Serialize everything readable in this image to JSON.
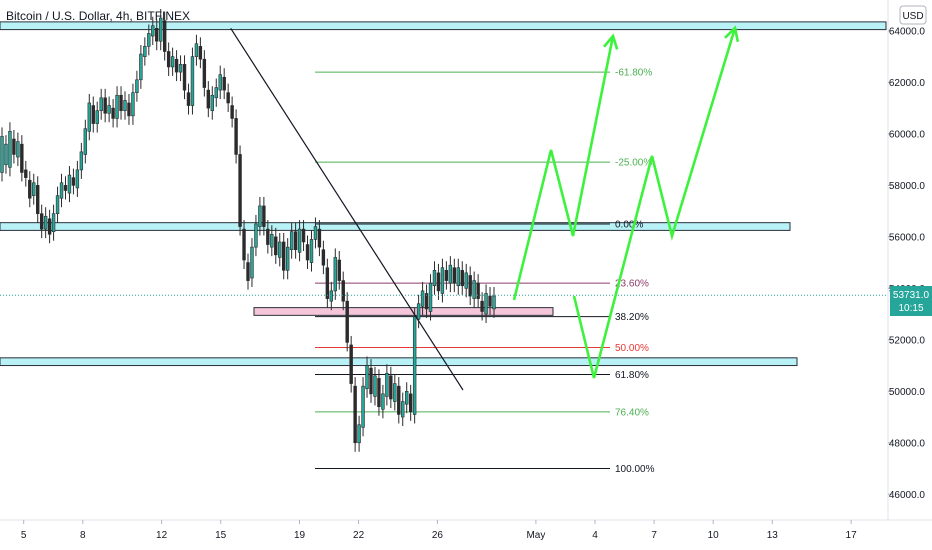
{
  "header": {
    "symbol_title": "Bitcoin / U.S. Dollar, 4h, BITFINEX",
    "currency_button": "USD"
  },
  "price_badge": {
    "price": "53731.0",
    "countdown": "10:15"
  },
  "colors": {
    "up_candle": "#26a69a",
    "down_candle": "#ef5350",
    "candle_body": "#2b2b2b",
    "zone_cyan": "#7ee7ee",
    "zone_pink": "#f3b7cf",
    "projection": "#3df23d",
    "fib_green": "#4caf50",
    "fib_purple": "#8e3b6b",
    "fib_red": "#e53935",
    "fib_black": "#131722",
    "badge": "#26a69a"
  },
  "chart_data": {
    "type": "candlestick",
    "title": "Bitcoin / U.S. Dollar, 4h, BITFINEX",
    "xlabel": "",
    "ylabel": "",
    "x_tick_labels": [
      "5",
      "8",
      "12",
      "15",
      "19",
      "22",
      "26",
      "May",
      "4",
      "7",
      "10",
      "13",
      "17"
    ],
    "y_tick_labels": [
      "46000.0",
      "48000.0",
      "50000.0",
      "52000.0",
      "54000.0",
      "56000.0",
      "58000.0",
      "60000.0",
      "62000.0",
      "64000.0"
    ],
    "y_range": [
      45000,
      65200
    ],
    "y_ticks": [
      46000,
      48000,
      50000,
      52000,
      54000,
      56000,
      58000,
      60000,
      62000,
      64000
    ],
    "x_range_days": [
      "Apr 4",
      "May 21"
    ],
    "last_price": 53731.0,
    "candles": [
      [
        58500,
        59900
      ],
      [
        58800,
        59600
      ],
      [
        58700,
        60100
      ],
      [
        59800,
        59200
      ],
      [
        59100,
        59700
      ],
      [
        59600,
        58500
      ],
      [
        58600,
        58300
      ],
      [
        58200,
        57500
      ],
      [
        57600,
        58100
      ],
      [
        58000,
        56900
      ],
      [
        56900,
        56300
      ],
      [
        56300,
        56800
      ],
      [
        56700,
        56100
      ],
      [
        56200,
        56900
      ],
      [
        56900,
        57600
      ],
      [
        57500,
        58100
      ],
      [
        58000,
        57800
      ],
      [
        57700,
        58400
      ],
      [
        58300,
        58000
      ],
      [
        57900,
        58600
      ],
      [
        58600,
        59300
      ],
      [
        59200,
        60200
      ],
      [
        60100,
        61200
      ],
      [
        61100,
        60400
      ],
      [
        60400,
        60900
      ],
      [
        60900,
        61400
      ],
      [
        61400,
        60800
      ],
      [
        60800,
        61100
      ],
      [
        61000,
        60600
      ],
      [
        60600,
        61500
      ],
      [
        61500,
        60900
      ],
      [
        60900,
        61300
      ],
      [
        61200,
        60700
      ],
      [
        60700,
        61600
      ],
      [
        61600,
        62100
      ],
      [
        62100,
        63100
      ],
      [
        63000,
        63400
      ],
      [
        63400,
        63900
      ],
      [
        63800,
        64200
      ],
      [
        64100,
        63600
      ],
      [
        63600,
        64500
      ],
      [
        64400,
        63200
      ],
      [
        63200,
        62600
      ],
      [
        62600,
        63000
      ],
      [
        62900,
        62400
      ],
      [
        62400,
        62700
      ],
      [
        62700,
        61700
      ],
      [
        61600,
        61100
      ],
      [
        61100,
        63000
      ],
      [
        63000,
        63500
      ],
      [
        63400,
        62900
      ],
      [
        62900,
        61800
      ],
      [
        61700,
        61000
      ],
      [
        60900,
        61500
      ],
      [
        61400,
        61800
      ],
      [
        61700,
        62300
      ],
      [
        62200,
        61700
      ],
      [
        61600,
        61200
      ],
      [
        61100,
        60600
      ],
      [
        60600,
        59200
      ],
      [
        59200,
        56400
      ],
      [
        56300,
        55100
      ],
      [
        55000,
        54300
      ],
      [
        54400,
        55600
      ],
      [
        55600,
        56500
      ],
      [
        56400,
        57200
      ],
      [
        57200,
        56400
      ],
      [
        56300,
        55700
      ],
      [
        55600,
        56100
      ],
      [
        56000,
        55300
      ],
      [
        55200,
        55800
      ],
      [
        55800,
        54700
      ],
      [
        54700,
        55600
      ],
      [
        55500,
        56200
      ],
      [
        56200,
        55500
      ],
      [
        55400,
        56300
      ],
      [
        56300,
        55800
      ],
      [
        55700,
        55100
      ],
      [
        55000,
        55900
      ],
      [
        55900,
        56400
      ],
      [
        56300,
        55600
      ],
      [
        55500,
        54900
      ],
      [
        54800,
        53600
      ],
      [
        53500,
        53900
      ],
      [
        53900,
        55200
      ],
      [
        55100,
        54300
      ],
      [
        54300,
        53500
      ],
      [
        53500,
        51900
      ],
      [
        51800,
        50300
      ],
      [
        50200,
        48000
      ],
      [
        48000,
        48700
      ],
      [
        48600,
        50200
      ],
      [
        50100,
        51000
      ],
      [
        50900,
        49900
      ],
      [
        49800,
        50600
      ],
      [
        50500,
        49400
      ],
      [
        49300,
        49900
      ],
      [
        49800,
        50700
      ],
      [
        50600,
        49700
      ],
      [
        49600,
        50300
      ],
      [
        50200,
        49100
      ],
      [
        49000,
        49600
      ],
      [
        49500,
        50000
      ],
      [
        49900,
        49200
      ],
      [
        49100,
        52900
      ],
      [
        52800,
        53400
      ],
      [
        53300,
        53900
      ],
      [
        53800,
        53200
      ],
      [
        53100,
        54200
      ],
      [
        54100,
        54700
      ],
      [
        54600,
        53900
      ],
      [
        53800,
        54800
      ],
      [
        54700,
        54300
      ],
      [
        54200,
        54900
      ],
      [
        54800,
        54200
      ],
      [
        54100,
        54800
      ],
      [
        54700,
        54100
      ],
      [
        54000,
        54600
      ],
      [
        54500,
        53700
      ],
      [
        53600,
        54300
      ],
      [
        54200,
        53600
      ],
      [
        53500,
        53100
      ],
      [
        53000,
        53800
      ],
      [
        53700,
        53300
      ],
      [
        53200,
        53700
      ]
    ],
    "annotations": {
      "resistance_zones": [
        [
          64050,
          64350
        ],
        [
          56250,
          56550
        ],
        [
          51000,
          51300
        ]
      ],
      "pink_zone": [
        52950,
        53250
      ],
      "trendline": [
        [
          "Apr 15",
          64100
        ],
        [
          "Apr 25",
          50000
        ]
      ],
      "fibonacci": [
        {
          "label": "-61.80%",
          "price": 62400,
          "color": "#4caf50"
        },
        {
          "label": "-25.00%",
          "price": 58900,
          "color": "#4caf50"
        },
        {
          "label": "0.00%",
          "price": 56500,
          "color": "#131722"
        },
        {
          "label": "23.60%",
          "price": 54200,
          "color": "#8e3b6b"
        },
        {
          "label": "38.20%",
          "price": 52900,
          "color": "#131722"
        },
        {
          "label": "50.00%",
          "price": 51700,
          "color": "#e53935"
        },
        {
          "label": "61.80%",
          "price": 50650,
          "color": "#131722"
        },
        {
          "label": "76.40%",
          "price": 49200,
          "color": "#4caf50"
        },
        {
          "label": "100.00%",
          "price": 47000,
          "color": "#131722"
        }
      ],
      "projection_up": [
        [
          53200,
          59200
        ],
        [
          56000,
          64800
        ]
      ],
      "projection_down": [
        [
          53400,
          50500
        ],
        [
          53300,
          59000
        ],
        [
          55900,
          64700
        ]
      ]
    }
  }
}
